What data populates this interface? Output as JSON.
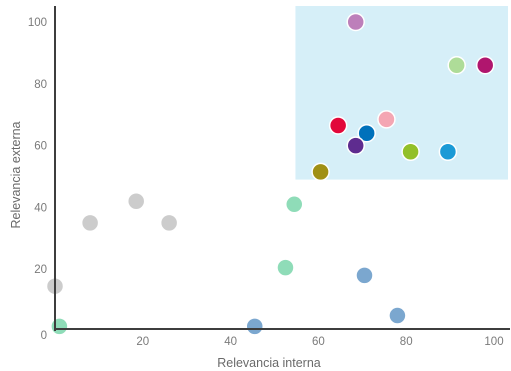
{
  "chart_data": {
    "type": "scatter",
    "xlabel": "Relevancia interna",
    "ylabel": "Relevancia externa",
    "xlim": [
      0,
      100
    ],
    "ylim": [
      0,
      100
    ],
    "x_ticks": [
      20,
      40,
      60,
      80,
      100
    ],
    "x_tick_labels": [
      "20",
      "40",
      "60",
      "80",
      "100"
    ],
    "y_ticks": [
      0,
      20,
      40,
      60,
      80,
      100
    ],
    "y_tick_labels": [
      "0",
      "20",
      "40",
      "60",
      "80",
      "100"
    ],
    "grid": false,
    "highlight_region": {
      "x": [
        55,
        100
      ],
      "y": [
        49,
        100
      ],
      "color": "#d6eff8"
    },
    "points": [
      {
        "x": 0,
        "y": 14.5,
        "color": "#cccccc"
      },
      {
        "x": 8,
        "y": 35,
        "color": "#cccccc"
      },
      {
        "x": 18.5,
        "y": 42,
        "color": "#cccccc"
      },
      {
        "x": 26,
        "y": 35,
        "color": "#cccccc"
      },
      {
        "x": 1,
        "y": 1.5,
        "color": "#8fdcb8"
      },
      {
        "x": 52.5,
        "y": 20.5,
        "color": "#8fdcb8"
      },
      {
        "x": 54.5,
        "y": 41,
        "color": "#8fdcb8"
      },
      {
        "x": 45.5,
        "y": 1.5,
        "color": "#7ba7cf"
      },
      {
        "x": 70.5,
        "y": 18,
        "color": "#7ba7cf"
      },
      {
        "x": 78,
        "y": 5,
        "color": "#7ba7cf"
      },
      {
        "x": 68.5,
        "y": 100,
        "color": "#bd7fba"
      },
      {
        "x": 91.5,
        "y": 86,
        "color": "#aedc98"
      },
      {
        "x": 98,
        "y": 86,
        "color": "#b0166e"
      },
      {
        "x": 64.5,
        "y": 66.5,
        "color": "#e2083a"
      },
      {
        "x": 71,
        "y": 64,
        "color": "#0071bb"
      },
      {
        "x": 75.5,
        "y": 68.5,
        "color": "#f4a6b3"
      },
      {
        "x": 68.5,
        "y": 60,
        "color": "#5e2c8f"
      },
      {
        "x": 60.5,
        "y": 51.5,
        "color": "#a09015"
      },
      {
        "x": 81,
        "y": 58,
        "color": "#93c029"
      },
      {
        "x": 89.5,
        "y": 58,
        "color": "#1b9ad6"
      }
    ]
  }
}
